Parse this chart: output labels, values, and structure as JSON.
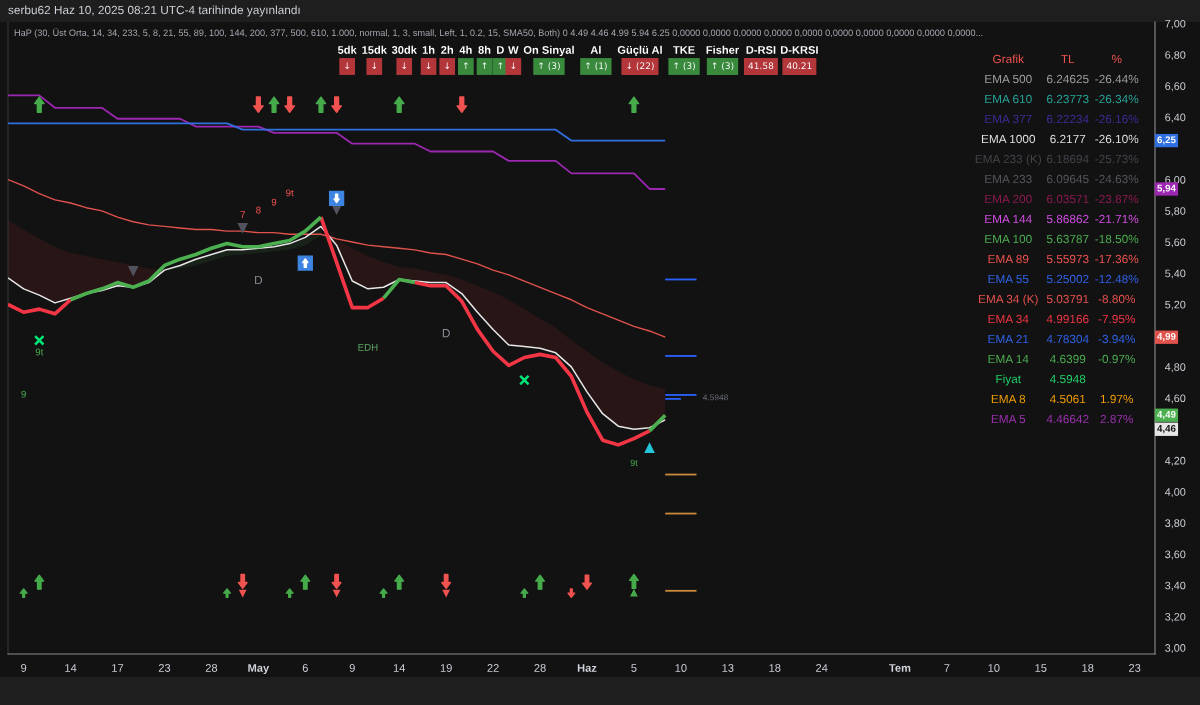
{
  "chart_data": [
    {
      "type": "line",
      "title": "serbu62 Haz 10, 2025 08:21 UTC-4 tarihinde yayınlandı",
      "subtitle": "HaP (30, Üst Orta, 14, 34, 233, 5, 8, 21, 55, 89, 100, 144, 200, 377, 500, 610, 1.000, normal, 1, 3, small, Left, 1, 0.2, 15, SMA50, Both) 0 4.49 4.46 4.99 5.94 6.25 0,0000 0,0000 0,0000 0,0000 0,0000 0,0000 0,0000 0,0000 0,0000 0,0000...",
      "categories": [
        null,
        "9",
        null,
        null,
        "14",
        null,
        null,
        "17",
        null,
        null,
        "23",
        null,
        null,
        "28",
        null,
        null,
        "May",
        null,
        null,
        "6",
        null,
        null,
        "9",
        null,
        null,
        "14",
        null,
        null,
        "19",
        null,
        null,
        "22",
        null,
        null,
        "28",
        null,
        null,
        "Haz",
        null,
        null,
        "5",
        null,
        null,
        "10",
        null,
        null,
        "13",
        null,
        null,
        "18",
        null,
        null,
        "24",
        null,
        null,
        null,
        null,
        "Tem",
        null,
        null,
        "7",
        null,
        null,
        "10",
        null,
        null,
        "15",
        null,
        null,
        "18",
        null,
        null,
        "23",
        null
      ],
      "ylim": [
        2.96,
        7.01
      ],
      "yticks": [
        {
          "value": 3.0,
          "label": "3,00"
        },
        {
          "value": 3.2,
          "label": "3,20"
        },
        {
          "value": 3.4,
          "label": "3,40"
        },
        {
          "value": 3.6,
          "label": "3,60"
        },
        {
          "value": 3.8,
          "label": "3,80"
        },
        {
          "value": 4.0,
          "label": "4,00"
        },
        {
          "value": 4.2,
          "label": "4,20"
        },
        {
          "value": 4.6,
          "label": "4,60"
        },
        {
          "value": 4.8,
          "label": "4,80"
        },
        {
          "value": 5.2,
          "label": "5,20"
        },
        {
          "value": 5.4,
          "label": "5,40"
        },
        {
          "value": 5.6,
          "label": "5,60"
        },
        {
          "value": 5.8,
          "label": "5,80"
        },
        {
          "value": 6.0,
          "label": "6,00"
        },
        {
          "value": 6.4,
          "label": "6,40"
        },
        {
          "value": 6.6,
          "label": "6,60"
        },
        {
          "value": 6.8,
          "label": "6,80"
        },
        {
          "value": 7.0,
          "label": "7,00"
        }
      ],
      "series": [
        {
          "type": "line",
          "color": "#9c27b0",
          "values": [
            6.54,
            6.54,
            6.54,
            6.46,
            6.46,
            6.46,
            6.46,
            6.39,
            6.39,
            6.39,
            6.39,
            6.39,
            6.34,
            6.34,
            6.34,
            6.34,
            6.34,
            6.3,
            6.3,
            6.3,
            6.3,
            6.3,
            6.23,
            6.23,
            6.23,
            6.23,
            6.23,
            6.18,
            6.18,
            6.18,
            6.18,
            6.18,
            6.12,
            6.12,
            6.12,
            6.12,
            6.04,
            6.04,
            6.04,
            6.04,
            6.04,
            5.94,
            5.94,
            null,
            null,
            null,
            null,
            null,
            null,
            null,
            null,
            null,
            null,
            null,
            null,
            null,
            null,
            null,
            null,
            null,
            null,
            null,
            null,
            null,
            null,
            null,
            null,
            null,
            null,
            null,
            null,
            null,
            null,
            null
          ]
        },
        {
          "type": "line",
          "color": "#2f6fe0",
          "values": [
            6.36,
            6.36,
            6.36,
            6.36,
            6.36,
            6.36,
            6.36,
            6.36,
            6.36,
            6.36,
            6.36,
            6.36,
            6.36,
            6.36,
            6.36,
            6.32,
            6.32,
            6.32,
            6.32,
            6.32,
            6.32,
            6.32,
            6.32,
            6.32,
            6.32,
            6.32,
            6.32,
            6.32,
            6.32,
            6.32,
            6.32,
            6.32,
            6.32,
            6.32,
            6.32,
            6.32,
            6.25,
            6.25,
            6.25,
            6.25,
            6.25,
            6.25,
            6.25,
            null,
            null,
            null,
            null,
            null,
            null,
            null,
            null,
            null,
            null,
            null,
            null,
            null,
            null,
            null,
            null,
            null,
            null,
            null,
            null,
            null,
            null,
            null,
            null,
            null,
            null,
            null,
            null,
            null,
            null,
            null
          ]
        },
        {
          "type": "line",
          "color": "#e0524c",
          "values": [
            6.0,
            5.96,
            5.91,
            5.87,
            5.85,
            5.82,
            5.8,
            5.76,
            5.73,
            5.71,
            5.7,
            5.69,
            5.68,
            5.68,
            5.67,
            5.67,
            5.66,
            5.66,
            5.65,
            5.65,
            5.65,
            5.62,
            5.6,
            5.58,
            5.57,
            5.56,
            5.55,
            5.53,
            5.52,
            5.49,
            5.46,
            5.42,
            5.39,
            5.35,
            5.31,
            5.27,
            5.23,
            5.18,
            5.14,
            5.1,
            5.06,
            5.03,
            4.99,
            null,
            null,
            null,
            null,
            null,
            null,
            null,
            null,
            null,
            null,
            null,
            null,
            null,
            null,
            null,
            null,
            null,
            null,
            null,
            null,
            null,
            null,
            null,
            null,
            null,
            null,
            null,
            null,
            null,
            null,
            null
          ]
        },
        {
          "type": "line",
          "color": "#e6e6e6",
          "values": [
            5.37,
            5.3,
            5.26,
            5.21,
            5.24,
            5.27,
            5.29,
            5.32,
            5.31,
            5.34,
            5.42,
            5.45,
            5.49,
            5.52,
            5.55,
            5.55,
            5.56,
            5.57,
            5.59,
            5.63,
            5.7,
            5.58,
            5.35,
            5.3,
            5.31,
            5.36,
            5.35,
            5.34,
            5.34,
            5.27,
            5.15,
            5.04,
            4.94,
            4.93,
            4.92,
            4.89,
            4.8,
            4.64,
            4.5,
            4.42,
            4.4,
            4.41,
            4.46,
            null,
            null,
            null,
            null,
            null,
            null,
            null,
            null,
            null,
            null,
            null,
            null,
            null,
            null,
            null,
            null,
            null,
            null,
            null,
            null,
            null,
            null,
            null,
            null,
            null,
            null,
            null,
            null,
            null,
            null,
            null
          ]
        },
        {
          "type": "line",
          "color": "#f23645",
          "values": [
            5.2,
            5.15,
            5.17,
            5.14,
            5.23,
            null,
            null,
            null,
            null,
            null,
            null,
            null,
            null,
            null,
            null,
            null,
            null,
            null,
            null,
            null,
            5.76,
            5.47,
            5.18,
            5.18,
            5.24,
            null,
            5.34,
            5.32,
            5.32,
            5.22,
            5.04,
            4.9,
            4.81,
            4.86,
            4.88,
            4.86,
            4.74,
            4.51,
            4.33,
            4.3,
            4.34,
            4.39,
            null,
            null,
            null,
            null,
            null,
            null,
            null,
            null,
            null,
            null,
            null,
            null,
            null,
            null,
            null,
            null,
            null,
            null,
            null,
            null,
            null,
            null,
            null,
            null,
            null,
            null,
            null,
            null,
            null,
            null,
            null,
            null
          ],
          "lower": [
            5.37,
            5.3,
            5.26,
            5.21,
            5.24,
            5.27,
            5.29,
            5.32,
            5.31,
            5.34,
            5.42,
            null,
            null,
            null,
            null,
            null,
            null,
            null,
            null,
            null,
            5.7,
            5.58,
            5.35,
            5.3,
            5.31,
            5.36,
            5.35,
            5.34,
            5.34,
            5.27,
            5.15,
            5.04,
            4.94,
            4.93,
            4.92,
            4.89,
            4.8,
            4.64,
            4.5,
            4.42,
            4.4,
            4.41,
            4.46,
            null,
            null,
            null,
            null,
            null,
            null,
            null,
            null,
            null,
            null,
            null,
            null,
            null,
            null,
            null,
            null,
            null,
            null,
            null,
            null,
            null,
            null,
            null,
            null,
            null,
            null,
            null,
            null,
            null,
            null,
            null
          ],
          "upper": [
            5.74,
            5.68,
            5.62,
            5.57,
            5.53,
            5.51,
            5.49,
            5.47,
            5.45,
            5.43,
            5.42,
            null,
            null,
            null,
            null,
            null,
            null,
            null,
            null,
            null,
            5.7,
            5.62,
            5.56,
            5.51,
            5.47,
            5.44,
            5.43,
            5.41,
            5.39,
            5.36,
            5.32,
            5.28,
            5.23,
            5.17,
            5.11,
            5.05,
            4.97,
            4.9,
            4.83,
            4.77,
            4.72,
            4.68,
            4.66,
            null,
            null,
            null,
            null,
            null,
            null,
            null,
            null,
            null,
            null,
            null,
            null,
            null,
            null,
            null,
            null,
            null,
            null,
            null,
            null,
            null,
            null,
            null,
            null,
            null,
            null,
            null,
            null,
            null,
            null,
            null
          ]
        },
        {
          "type": "line",
          "color": "#4caf50",
          "values": [
            null,
            null,
            null,
            null,
            5.23,
            5.27,
            5.3,
            5.34,
            5.31,
            5.35,
            5.45,
            5.49,
            5.52,
            5.56,
            5.59,
            5.57,
            5.57,
            5.59,
            5.61,
            5.67,
            5.76,
            null,
            null,
            null,
            5.24,
            5.36,
            5.34,
            null,
            null,
            null,
            null,
            null,
            null,
            null,
            null,
            null,
            null,
            null,
            null,
            null,
            null,
            4.39,
            4.49,
            null,
            null,
            null,
            null,
            null,
            null,
            null,
            null,
            null,
            null,
            null,
            null,
            null,
            null,
            null,
            null,
            null,
            null,
            null,
            null,
            null,
            null,
            null,
            null,
            null,
            null,
            null,
            null,
            null,
            null,
            null
          ],
          "lower": [
            null,
            null,
            null,
            null,
            null,
            null,
            null,
            null,
            null,
            null,
            5.42,
            5.43,
            5.45,
            5.48,
            5.51,
            5.52,
            5.53,
            5.54,
            5.55,
            5.58,
            5.64,
            null,
            null,
            null,
            null,
            null,
            null,
            null,
            null,
            null,
            null,
            null,
            null,
            null,
            null,
            null,
            null,
            null,
            null,
            null,
            null,
            null,
            null,
            null,
            null,
            null,
            null,
            null,
            null,
            null,
            null,
            null,
            null,
            null,
            null,
            null,
            null,
            null,
            null,
            null,
            null,
            null,
            null,
            null,
            null,
            null,
            null,
            null,
            null,
            null,
            null,
            null,
            null,
            null
          ],
          "upper": [
            null,
            null,
            null,
            null,
            null,
            null,
            null,
            null,
            null,
            null,
            5.42,
            5.45,
            5.49,
            5.52,
            5.55,
            5.55,
            5.56,
            5.57,
            5.59,
            5.63,
            5.7,
            null,
            null,
            null,
            null,
            null,
            null,
            null,
            null,
            null,
            null,
            null,
            null,
            null,
            null,
            null,
            null,
            null,
            null,
            null,
            null,
            null,
            null,
            null,
            null,
            null,
            null,
            null,
            null,
            null,
            null,
            null,
            null,
            null,
            null,
            null,
            null,
            null,
            null,
            null,
            null,
            null,
            null,
            null,
            null,
            null,
            null,
            null,
            null,
            null,
            null,
            null,
            null,
            null
          ]
        },
        {
          "type": "line",
          "color": "#2962ff",
          "values": [
            null,
            null,
            null,
            null,
            null,
            null,
            null,
            null,
            null,
            null,
            null,
            null,
            null,
            null,
            null,
            null,
            null,
            null,
            null,
            null,
            null,
            null,
            null,
            null,
            null,
            null,
            null,
            null,
            null,
            null,
            null,
            null,
            null,
            null,
            null,
            null,
            null,
            null,
            null,
            null,
            null,
            null,
            5.36,
            5.36,
            5.36,
            null,
            null,
            null,
            null,
            null,
            null,
            null,
            null,
            null,
            null,
            null,
            null,
            null,
            null,
            null,
            null,
            null,
            null,
            null,
            null,
            null,
            null,
            null,
            null,
            null,
            null,
            null,
            null,
            null
          ]
        },
        {
          "type": "line",
          "color": "#2962ff",
          "values": [
            null,
            null,
            null,
            null,
            null,
            null,
            null,
            null,
            null,
            null,
            null,
            null,
            null,
            null,
            null,
            null,
            null,
            null,
            null,
            null,
            null,
            null,
            null,
            null,
            null,
            null,
            null,
            null,
            null,
            null,
            null,
            null,
            null,
            null,
            null,
            null,
            null,
            null,
            null,
            null,
            null,
            null,
            4.87,
            4.87,
            4.87,
            null,
            null,
            null,
            null,
            null,
            null,
            null,
            null,
            null,
            null,
            null,
            null,
            null,
            null,
            null,
            null,
            null,
            null,
            null,
            null,
            null,
            null,
            null,
            null,
            null,
            null,
            null,
            null,
            null
          ]
        },
        {
          "type": "line",
          "color": "#2962ff",
          "values": [
            null,
            null,
            null,
            null,
            null,
            null,
            null,
            null,
            null,
            null,
            null,
            null,
            null,
            null,
            null,
            null,
            null,
            null,
            null,
            null,
            null,
            null,
            null,
            null,
            null,
            null,
            null,
            null,
            null,
            null,
            null,
            null,
            null,
            null,
            null,
            null,
            null,
            null,
            null,
            null,
            null,
            null,
            4.62,
            4.62,
            4.62,
            null,
            null,
            null,
            null,
            null,
            null,
            null,
            null,
            null,
            null,
            null,
            null,
            null,
            null,
            null,
            null,
            null,
            null,
            null,
            null,
            null,
            null,
            null,
            null,
            null,
            null,
            null,
            null,
            null
          ]
        },
        {
          "type": "line",
          "color": "#2962ff",
          "values": [
            null,
            null,
            null,
            null,
            null,
            null,
            null,
            null,
            null,
            null,
            null,
            null,
            null,
            null,
            null,
            null,
            null,
            null,
            null,
            null,
            null,
            null,
            null,
            null,
            null,
            null,
            null,
            null,
            null,
            null,
            null,
            null,
            null,
            null,
            null,
            null,
            null,
            null,
            null,
            null,
            null,
            null,
            4.5948,
            4.5948,
            null,
            null,
            null,
            null,
            null,
            null,
            null,
            null,
            null,
            null,
            null,
            null,
            null,
            null,
            null,
            null,
            null,
            null,
            null,
            null,
            null,
            null,
            null,
            null,
            null,
            null,
            null,
            null,
            null,
            null
          ]
        },
        {
          "type": "line",
          "color": "#c98a3a",
          "values": [
            null,
            null,
            null,
            null,
            null,
            null,
            null,
            null,
            null,
            null,
            null,
            null,
            null,
            null,
            null,
            null,
            null,
            null,
            null,
            null,
            null,
            null,
            null,
            null,
            null,
            null,
            null,
            null,
            null,
            null,
            null,
            null,
            null,
            null,
            null,
            null,
            null,
            null,
            null,
            null,
            null,
            null,
            4.11,
            4.11,
            4.11,
            null,
            null,
            null,
            null,
            null,
            null,
            null,
            null,
            null,
            null,
            null,
            null,
            null,
            null,
            null,
            null,
            null,
            null,
            null,
            null,
            null,
            null,
            null,
            null,
            null,
            null,
            null,
            null,
            null
          ]
        },
        {
          "type": "line",
          "color": "#c98a3a",
          "values": [
            null,
            null,
            null,
            null,
            null,
            null,
            null,
            null,
            null,
            null,
            null,
            null,
            null,
            null,
            null,
            null,
            null,
            null,
            null,
            null,
            null,
            null,
            null,
            null,
            null,
            null,
            null,
            null,
            null,
            null,
            null,
            null,
            null,
            null,
            null,
            null,
            null,
            null,
            null,
            null,
            null,
            null,
            3.86,
            3.86,
            3.86,
            null,
            null,
            null,
            null,
            null,
            null,
            null,
            null,
            null,
            null,
            null,
            null,
            null,
            null,
            null,
            null,
            null,
            null,
            null,
            null,
            null,
            null,
            null,
            null,
            null,
            null,
            null,
            null,
            null
          ]
        },
        {
          "type": "line",
          "color": "#c98a3a",
          "values": [
            null,
            null,
            null,
            null,
            null,
            null,
            null,
            null,
            null,
            null,
            null,
            null,
            null,
            null,
            null,
            null,
            null,
            null,
            null,
            null,
            null,
            null,
            null,
            null,
            null,
            null,
            null,
            null,
            null,
            null,
            null,
            null,
            null,
            null,
            null,
            null,
            null,
            null,
            null,
            null,
            null,
            null,
            3.365,
            3.365,
            3.365,
            null,
            null,
            null,
            null,
            null,
            null,
            null,
            null,
            null,
            null,
            null,
            null,
            null,
            null,
            null,
            null,
            null,
            null,
            null,
            null,
            null,
            null,
            null,
            null,
            null,
            null,
            null,
            null,
            null
          ]
        }
      ],
      "annotations": [
        "7",
        "8",
        "9",
        "9t",
        "9t",
        "9",
        "D",
        "D",
        "EDH",
        "9t",
        "4.5948",
        "6,25",
        "5,94",
        "4,99",
        "4,49",
        "4,46"
      ]
    },
    {
      "type": "other",
      "ylabel": "Grafik",
      "categories": [
        "EMA 500",
        "EMA 610",
        "EMA 377",
        "EMA 1000",
        "EMA 233 (K)",
        "EMA 233",
        "EMA 200",
        "EMA 144",
        "EMA 100",
        "EMA 89",
        "EMA 55",
        "EMA 34 (K)",
        "EMA 34",
        "EMA 21",
        "EMA 14",
        "Fiyat",
        "EMA 8",
        "EMA 5"
      ],
      "colors": [
        "#a0a0a0",
        "#26a69a",
        "#3b2c94",
        "#e6e6e6",
        "#43434b",
        "#55555e",
        "#8a1a4f",
        "#d64ee8",
        "#4caf50",
        "#ef5350",
        "#2f63e8",
        "#e8524e",
        "#f23645",
        "#2f63e8",
        "#4caf50",
        "#1fd46a",
        "#f5a000",
        "#9c30b0"
      ],
      "series": [
        {
          "name": "TL",
          "values": [
            6.24625,
            6.23773,
            6.22234,
            6.2177,
            6.18694,
            6.09645,
            6.03571,
            5.86862,
            5.63787,
            5.55973,
            5.25002,
            5.03791,
            4.99166,
            4.78304,
            4.6399,
            4.5948,
            4.5061,
            4.46642
          ],
          "value_labels": [
            "6.24625",
            "6.23773",
            "6.22234",
            "6.2177",
            "6.18694",
            "6.09645",
            "6.03571",
            "5.86862",
            "5.63787",
            "5.55973",
            "5.25002",
            "5.03791",
            "4.99166",
            "4.78304",
            "4.6399",
            "4.5948",
            "4.5061",
            "4.46642"
          ]
        },
        {
          "name": "%",
          "values": [
            -26.44,
            -26.34,
            -26.16,
            -26.1,
            -25.73,
            -24.63,
            -23.87,
            -21.71,
            -18.5,
            -17.36,
            -12.48,
            -8.8,
            -7.95,
            -3.94,
            -0.97,
            null,
            1.97,
            2.87
          ],
          "value_labels": [
            "-26.44%",
            "-26.34%",
            "-26.16%",
            "-26.10%",
            "-25.73%",
            "-24.63%",
            "-23.87%",
            "-21.71%",
            "-18.50%",
            "-17.36%",
            "-12.48%",
            "-8.80%",
            "-7.95%",
            "-3.94%",
            "-0.97%",
            null,
            "1.97%",
            "2.87%"
          ]
        }
      ]
    },
    {
      "type": "other",
      "categories": [
        "5dk",
        "15dk",
        "30dk",
        "1h",
        "2h",
        "4h",
        "8h",
        "D",
        "W",
        "On Sinyal",
        "Al",
        "Güçlü Al",
        "TKE",
        "Fisher",
        "D-RSI",
        "D-KRSI"
      ],
      "value_labels": [
        "↓",
        "↓",
        "↓",
        "↓",
        "↓",
        "↑",
        "↑",
        "↑",
        "↓",
        "↑ (3)",
        "↑ (1)",
        "↓ (22)",
        "↑ (3)",
        "↑ (3)",
        "41.58",
        "40.21"
      ],
      "colors": [
        "#b2363a",
        "#b2363a",
        "#b2363a",
        "#b2363a",
        "#b2363a",
        "#3a8a3e",
        "#3a8a3e",
        "#3a8a3e",
        "#b2363a",
        "#3a8a3e",
        "#3a8a3e",
        "#b2363a",
        "#3a8a3e",
        "#3a8a3e",
        "#b2363a",
        "#b2363a"
      ]
    }
  ]
}
